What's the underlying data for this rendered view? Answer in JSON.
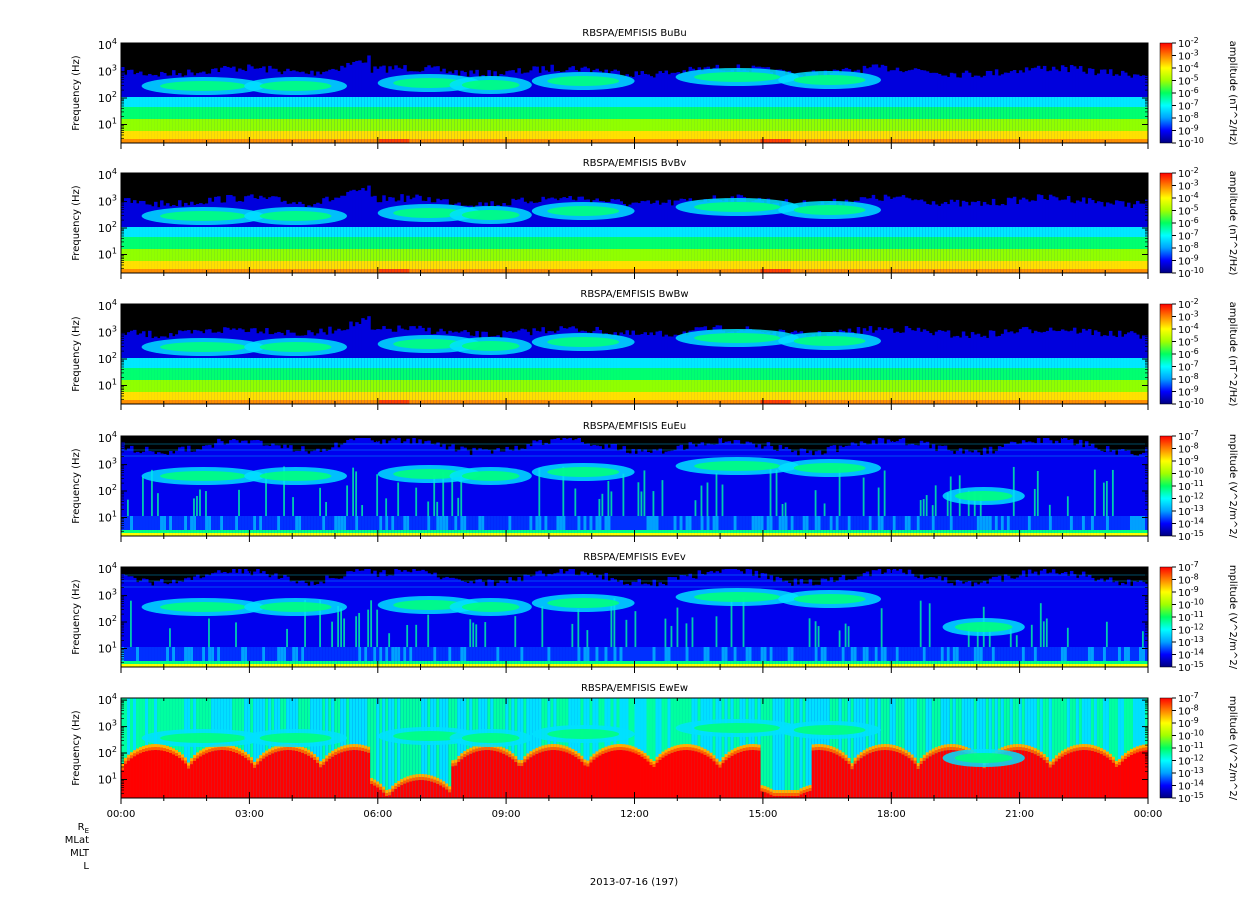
{
  "chart_data": {
    "type": "heatmap",
    "date_label": "2013-07-16 (197)",
    "x_ticks": [
      "00:00",
      "03:00",
      "06:00",
      "09:00",
      "12:00",
      "15:00",
      "18:00",
      "21:00",
      "00:00"
    ],
    "x_range_hours": [
      0,
      24
    ],
    "ephemeris_labels": [
      "R",
      "MLat",
      "MLT",
      "L"
    ],
    "ephemeris_subscript": "E",
    "y_label": "Frequency (Hz)",
    "y_scale": "log",
    "y_ticks": [
      {
        "value": 10,
        "label": "10",
        "exp": "1"
      },
      {
        "value": 100,
        "label": "10",
        "exp": "2"
      },
      {
        "value": 1000,
        "label": "10",
        "exp": "3"
      },
      {
        "value": 10000,
        "label": "10",
        "exp": "4"
      }
    ],
    "y_range_hz": [
      2,
      12000
    ],
    "panels": [
      {
        "title": "RBSPA/EMFISIS  BuBu",
        "colorbar_label": "amplitude (nT^2/Hz)",
        "cb_exp_min": -10,
        "cb_exp_max": -2,
        "kind": "B"
      },
      {
        "title": "RBSPA/EMFISIS  BvBv",
        "colorbar_label": "amplitude (nT^2/Hz)",
        "cb_exp_min": -10,
        "cb_exp_max": -2,
        "kind": "B"
      },
      {
        "title": "RBSPA/EMFISIS  BwBw",
        "colorbar_label": "amplitude (nT^2/Hz)",
        "cb_exp_min": -10,
        "cb_exp_max": -2,
        "kind": "B"
      },
      {
        "title": "RBSPA/EMFISIS  EuEu",
        "colorbar_label": "mplitude (V^2/m^2/",
        "cb_exp_min": -15,
        "cb_exp_max": -7,
        "kind": "E"
      },
      {
        "title": "RBSPA/EMFISIS  EvEv",
        "colorbar_label": "mplitude (V^2/m^2/",
        "cb_exp_min": -15,
        "cb_exp_max": -7,
        "kind": "E"
      },
      {
        "title": "RBSPA/EMFISIS  EwEw",
        "colorbar_label": "mplitude (V^2/m^2/",
        "cb_exp_min": -15,
        "cb_exp_max": -7,
        "kind": "Ew"
      }
    ],
    "colormap": [
      "#000080",
      "#0000ff",
      "#00a0ff",
      "#00ffff",
      "#00ff60",
      "#a0ff00",
      "#ffff00",
      "#ff8000",
      "#ff0000"
    ]
  }
}
